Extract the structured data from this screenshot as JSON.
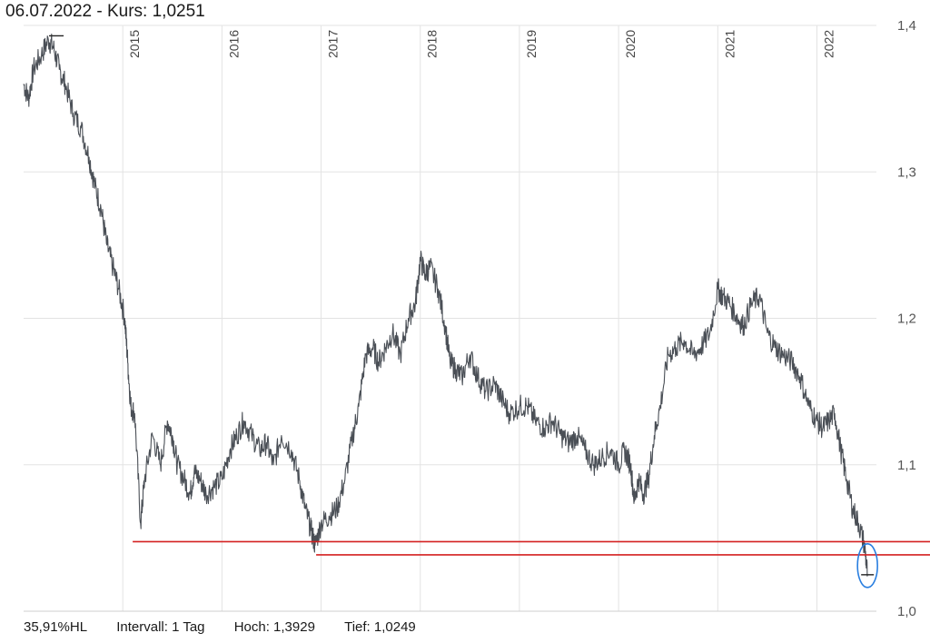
{
  "header": {
    "date": "06.07.2022",
    "separator": " - ",
    "price_label": "Kurs: 1,0251"
  },
  "footer": {
    "range": "35,91%HL",
    "interval": "Intervall: 1 Tag",
    "high": "Hoch: 1,3929",
    "low": "Tief: 1,0249"
  },
  "colors": {
    "series": "#4a4f56",
    "support_line": "#d42020",
    "highlight_circle": "#2a7fe0",
    "grid": "#e3e3e3"
  },
  "chart_data": {
    "type": "line",
    "title": "",
    "xlabel": "",
    "ylabel": "",
    "ylim": [
      1.0,
      1.4
    ],
    "xlim": [
      2014.0,
      2022.6
    ],
    "y_ticks": [
      1.0,
      1.1,
      1.2,
      1.3,
      1.4
    ],
    "y_tick_labels": [
      "1,0",
      "1,1",
      "1,2",
      "1,3",
      "1,4"
    ],
    "x_ticks": [
      2015,
      2016,
      2017,
      2018,
      2019,
      2020,
      2021,
      2022
    ],
    "x_tick_labels": [
      "2015",
      "2016",
      "2017",
      "2018",
      "2019",
      "2020",
      "2021",
      "2022"
    ],
    "grid": true,
    "series": [
      {
        "x": [
          2014.0,
          2014.05,
          2014.1,
          2014.18,
          2014.25,
          2014.3,
          2014.36,
          2014.42,
          2014.5,
          2014.58,
          2014.66,
          2014.72,
          2014.78,
          2014.84,
          2014.9,
          2014.96,
          2015.02,
          2015.05,
          2015.08,
          2015.12,
          2015.18,
          2015.22,
          2015.3,
          2015.38,
          2015.45,
          2015.5,
          2015.55,
          2015.62,
          2015.68,
          2015.72,
          2015.78,
          2015.84,
          2015.92,
          2016.0,
          2016.08,
          2016.15,
          2016.22,
          2016.3,
          2016.38,
          2016.45,
          2016.52,
          2016.6,
          2016.7,
          2016.78,
          2016.84,
          2016.9,
          2016.94,
          2017.0,
          2017.08,
          2017.16,
          2017.24,
          2017.32,
          2017.38,
          2017.45,
          2017.52,
          2017.58,
          2017.65,
          2017.72,
          2017.8,
          2017.88,
          2017.95,
          2018.0,
          2018.05,
          2018.1,
          2018.18,
          2018.25,
          2018.3,
          2018.36,
          2018.42,
          2018.5,
          2018.58,
          2018.66,
          2018.75,
          2018.82,
          2018.9,
          2019.0,
          2019.08,
          2019.16,
          2019.25,
          2019.33,
          2019.42,
          2019.5,
          2019.58,
          2019.66,
          2019.75,
          2019.83,
          2019.92,
          2020.0,
          2020.06,
          2020.12,
          2020.16,
          2020.2,
          2020.25,
          2020.3,
          2020.36,
          2020.42,
          2020.5,
          2020.58,
          2020.66,
          2020.75,
          2020.83,
          2020.92,
          2021.0,
          2021.05,
          2021.12,
          2021.2,
          2021.26,
          2021.34,
          2021.42,
          2021.5,
          2021.58,
          2021.66,
          2021.75,
          2021.83,
          2021.92,
          2022.0,
          2022.06,
          2022.12,
          2022.18,
          2022.24,
          2022.3,
          2022.36,
          2022.42,
          2022.48,
          2022.51
        ],
        "y": [
          1.36,
          1.35,
          1.37,
          1.38,
          1.39,
          1.385,
          1.37,
          1.36,
          1.34,
          1.33,
          1.31,
          1.29,
          1.275,
          1.25,
          1.235,
          1.22,
          1.2,
          1.17,
          1.14,
          1.135,
          1.06,
          1.09,
          1.12,
          1.1,
          1.13,
          1.12,
          1.1,
          1.09,
          1.08,
          1.095,
          1.09,
          1.08,
          1.085,
          1.09,
          1.11,
          1.12,
          1.13,
          1.12,
          1.11,
          1.115,
          1.1,
          1.12,
          1.11,
          1.09,
          1.07,
          1.055,
          1.045,
          1.06,
          1.065,
          1.07,
          1.09,
          1.12,
          1.14,
          1.175,
          1.18,
          1.17,
          1.18,
          1.19,
          1.175,
          1.2,
          1.21,
          1.24,
          1.23,
          1.235,
          1.22,
          1.195,
          1.17,
          1.165,
          1.16,
          1.175,
          1.16,
          1.15,
          1.155,
          1.145,
          1.135,
          1.14,
          1.14,
          1.13,
          1.125,
          1.13,
          1.12,
          1.115,
          1.12,
          1.11,
          1.1,
          1.105,
          1.11,
          1.1,
          1.11,
          1.1,
          1.075,
          1.09,
          1.08,
          1.09,
          1.12,
          1.14,
          1.175,
          1.18,
          1.185,
          1.175,
          1.18,
          1.19,
          1.22,
          1.215,
          1.21,
          1.2,
          1.195,
          1.21,
          1.215,
          1.19,
          1.18,
          1.175,
          1.17,
          1.16,
          1.14,
          1.13,
          1.125,
          1.13,
          1.135,
          1.11,
          1.09,
          1.07,
          1.06,
          1.045,
          1.025
        ]
      }
    ],
    "annotations": {
      "high_value": 1.3929,
      "high_x": 2014.33,
      "low_value": 1.0249,
      "low_x": 2022.51,
      "support_lines": [
        {
          "y": 1.0475,
          "x_start": 2015.1
        },
        {
          "y": 1.0385,
          "x_start": 2016.95
        }
      ]
    }
  }
}
